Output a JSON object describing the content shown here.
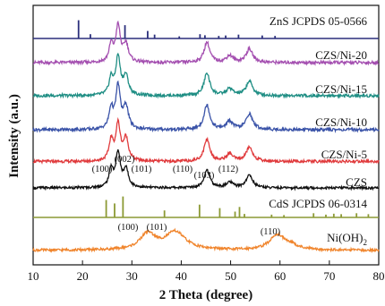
{
  "chart_data": {
    "type": "line",
    "xlabel": "2 Theta (degree)",
    "ylabel": "Intensity (a.u.)",
    "xlim": [
      10,
      80
    ],
    "x_ticks": [
      "10",
      "20",
      "30",
      "40",
      "50",
      "60",
      "70",
      "80"
    ],
    "grid": false,
    "legend": "inline labels at right",
    "series": [
      {
        "name": "ZnS JCPDS 05-0566",
        "kind": "reference-sticks",
        "color": "#2b2f7c",
        "label_parts": [
          "ZnS JCPDS 05-0566"
        ],
        "sticks": [
          [
            19.2,
            0.85
          ],
          [
            21.6,
            0.2
          ],
          [
            28.6,
            0.62
          ],
          [
            33.2,
            0.35
          ],
          [
            34.6,
            0.18
          ],
          [
            39.6,
            0.1
          ],
          [
            43.8,
            0.2
          ],
          [
            44.8,
            0.15
          ],
          [
            47.6,
            0.12
          ],
          [
            49.0,
            0.14
          ],
          [
            51.6,
            0.18
          ],
          [
            56.4,
            0.14
          ],
          [
            59.0,
            0.12
          ]
        ]
      },
      {
        "name": "CZS/Ni-20",
        "kind": "pattern",
        "color": "#a44fb0",
        "label_parts": [
          "CZS/Ni-20"
        ],
        "baseline": 0.1,
        "peaks": [
          [
            25.8,
            0.38,
            0.5
          ],
          [
            27.2,
            0.8,
            0.55
          ],
          [
            28.8,
            0.4,
            0.6
          ],
          [
            45.2,
            0.45,
            0.7
          ],
          [
            49.8,
            0.15,
            0.8
          ],
          [
            53.8,
            0.3,
            0.8
          ]
        ]
      },
      {
        "name": "CZS/Ni-15",
        "kind": "pattern",
        "color": "#1f8e84",
        "label_parts": [
          "CZS/Ni-15"
        ],
        "baseline": 0.1,
        "peaks": [
          [
            25.8,
            0.38,
            0.5
          ],
          [
            27.2,
            0.85,
            0.55
          ],
          [
            28.8,
            0.42,
            0.6
          ],
          [
            45.2,
            0.5,
            0.7
          ],
          [
            49.8,
            0.15,
            0.8
          ],
          [
            53.8,
            0.32,
            0.8
          ]
        ]
      },
      {
        "name": "CZS/Ni-10",
        "kind": "pattern",
        "color": "#3a53a8",
        "label_parts": [
          "CZS/Ni-10"
        ],
        "baseline": 0.1,
        "peaks": [
          [
            25.8,
            0.45,
            0.5
          ],
          [
            27.2,
            0.95,
            0.55
          ],
          [
            28.8,
            0.5,
            0.6
          ],
          [
            45.2,
            0.55,
            0.7
          ],
          [
            49.8,
            0.18,
            0.8
          ],
          [
            53.8,
            0.35,
            0.8
          ]
        ]
      },
      {
        "name": "CZS/Ni-5",
        "kind": "pattern",
        "color": "#e03a3c",
        "label_parts": [
          "CZS/Ni-5"
        ],
        "baseline": 0.1,
        "peaks": [
          [
            25.8,
            0.5,
            0.5
          ],
          [
            27.2,
            0.9,
            0.55
          ],
          [
            28.8,
            0.55,
            0.6
          ],
          [
            45.2,
            0.55,
            0.7
          ],
          [
            49.8,
            0.18,
            0.8
          ],
          [
            53.8,
            0.35,
            0.8
          ]
        ]
      },
      {
        "name": "CZS",
        "kind": "pattern",
        "color": "#111111",
        "label_parts": [
          "CZS"
        ],
        "baseline": 0.1,
        "peaks": [
          [
            25.8,
            0.5,
            0.5
          ],
          [
            27.2,
            0.95,
            0.55
          ],
          [
            28.8,
            0.5,
            0.6
          ],
          [
            45.2,
            0.5,
            0.7
          ],
          [
            49.8,
            0.15,
            0.8
          ],
          [
            53.8,
            0.35,
            0.8
          ]
        ],
        "annotations": [
          "(100)",
          "(002)",
          "(101)",
          "(110)",
          "(103)",
          "(112)"
        ]
      },
      {
        "name": "CdS JCPDS 06-0314",
        "kind": "reference-sticks",
        "color": "#8c9a35",
        "label_parts": [
          "CdS JCPDS 06-0314"
        ],
        "sticks": [
          [
            24.8,
            0.75
          ],
          [
            26.5,
            0.6
          ],
          [
            28.2,
            0.9
          ],
          [
            36.6,
            0.3
          ],
          [
            43.7,
            0.55
          ],
          [
            47.8,
            0.4
          ],
          [
            50.9,
            0.25
          ],
          [
            51.8,
            0.45
          ],
          [
            52.8,
            0.15
          ],
          [
            58.3,
            0.12
          ],
          [
            60.8,
            0.1
          ],
          [
            66.8,
            0.18
          ],
          [
            69.3,
            0.12
          ],
          [
            70.9,
            0.16
          ],
          [
            72.4,
            0.14
          ],
          [
            75.5,
            0.18
          ],
          [
            77.9,
            0.14
          ]
        ]
      },
      {
        "name": "Ni(OH)2",
        "kind": "pattern",
        "color": "#f0852d",
        "label_parts": [
          "Ni(OH)",
          "2"
        ],
        "baseline": 0.08,
        "peaks": [
          [
            33.2,
            0.45,
            1.8
          ],
          [
            38.8,
            0.5,
            2.5
          ],
          [
            59.4,
            0.4,
            1.8
          ],
          [
            62.0,
            0.12,
            2.0
          ]
        ],
        "annotations": [
          "(100)",
          "(101)",
          "(110)"
        ]
      }
    ]
  }
}
